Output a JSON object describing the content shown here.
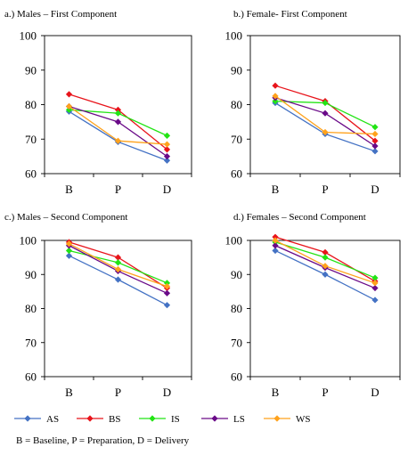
{
  "chart_data": [
    {
      "type": "line",
      "title": "a.) Males – First Component",
      "categories": [
        "B",
        "P",
        "D"
      ],
      "yticks": [
        "60",
        "70",
        "80",
        "90",
        "100"
      ],
      "ylim": [
        60,
        100
      ],
      "series": [
        {
          "name": "AS",
          "values": [
            78,
            69.2,
            63.8
          ]
        },
        {
          "name": "BS",
          "values": [
            83,
            78.5,
            67
          ]
        },
        {
          "name": "IS",
          "values": [
            78.5,
            77.5,
            71
          ]
        },
        {
          "name": "LS",
          "values": [
            79.5,
            75,
            65
          ]
        },
        {
          "name": "WS",
          "values": [
            79.5,
            69.5,
            68.5
          ]
        }
      ]
    },
    {
      "type": "line",
      "title": "b.) Female- First Component",
      "categories": [
        "B",
        "P",
        "D"
      ],
      "yticks": [
        "60",
        "70",
        "80",
        "90",
        "100"
      ],
      "ylim": [
        60,
        100
      ],
      "series": [
        {
          "name": "AS",
          "values": [
            80.5,
            71.5,
            66.5
          ]
        },
        {
          "name": "BS",
          "values": [
            85.5,
            81,
            69.5
          ]
        },
        {
          "name": "IS",
          "values": [
            81,
            80.5,
            73.5
          ]
        },
        {
          "name": "LS",
          "values": [
            82,
            77.5,
            68
          ]
        },
        {
          "name": "WS",
          "values": [
            82.5,
            72,
            71.5
          ]
        }
      ]
    },
    {
      "type": "line",
      "title": "c.) Males – Second Component",
      "categories": [
        "B",
        "P",
        "D"
      ],
      "yticks": [
        "60",
        "70",
        "80",
        "90",
        "100"
      ],
      "ylim": [
        60,
        100
      ],
      "series": [
        {
          "name": "AS",
          "values": [
            95.5,
            88.5,
            81
          ]
        },
        {
          "name": "BS",
          "values": [
            99.5,
            95,
            86
          ]
        },
        {
          "name": "IS",
          "values": [
            97,
            93.5,
            87.5
          ]
        },
        {
          "name": "LS",
          "values": [
            98.5,
            91,
            84.5
          ]
        },
        {
          "name": "WS",
          "values": [
            99,
            91.5,
            86.5
          ]
        }
      ]
    },
    {
      "type": "line",
      "title": "d.) Females – Second Component",
      "categories": [
        "B",
        "P",
        "D"
      ],
      "yticks": [
        "60",
        "70",
        "80",
        "90",
        "100"
      ],
      "ylim": [
        60,
        100
      ],
      "series": [
        {
          "name": "AS",
          "values": [
            97,
            90,
            82.5
          ]
        },
        {
          "name": "BS",
          "values": [
            101,
            96.5,
            88
          ]
        },
        {
          "name": "IS",
          "values": [
            99.5,
            95,
            89
          ]
        },
        {
          "name": "LS",
          "values": [
            98.5,
            92,
            86
          ]
        },
        {
          "name": "WS",
          "values": [
            100,
            92.5,
            87.5
          ]
        }
      ]
    }
  ],
  "legend": [
    {
      "name": "AS",
      "color": "#4472c4"
    },
    {
      "name": "BS",
      "color": "#e8141b"
    },
    {
      "name": "IS",
      "color": "#22e414"
    },
    {
      "name": "LS",
      "color": "#6a0a88"
    },
    {
      "name": "WS",
      "color": "#ffa21c"
    }
  ],
  "footnote": "B = Baseline, P = Preparation, D = Delivery"
}
